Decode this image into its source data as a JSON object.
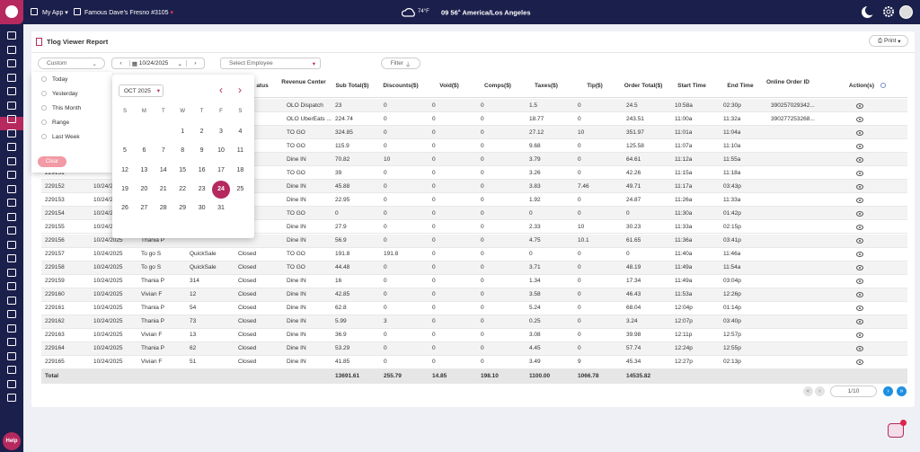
{
  "topbar": {
    "app": "My App",
    "store": "Famous Dave's Fresno #3105",
    "temperature": "74°F",
    "time": "09 56",
    "ampm": "A",
    "timezone": "America/Los Angeles"
  },
  "page": {
    "title": "Tlog Viewer Report",
    "print": "Print"
  },
  "filters": {
    "range": "Custom",
    "date": "10/24/2025",
    "employee": "Select Employee",
    "filter": "Filter"
  },
  "range_menu": {
    "options": [
      "Today",
      "Yesterday",
      "This Month",
      "Range",
      "Last Week"
    ],
    "clear": "Clear"
  },
  "calendar": {
    "month": "OCT 2025",
    "weekdays": [
      "S",
      "M",
      "T",
      "W",
      "T",
      "F",
      "S"
    ],
    "days": [
      null,
      null,
      null,
      "1",
      "2",
      "3",
      "4",
      "5",
      "6",
      "7",
      "8",
      "9",
      "10",
      "11",
      "12",
      "13",
      "14",
      "15",
      "16",
      "17",
      "18",
      "19",
      "20",
      "21",
      "22",
      "23",
      "24",
      "25",
      "26",
      "27",
      "28",
      "29",
      "30",
      "31"
    ]
  },
  "table": {
    "headers": [
      null,
      null,
      null,
      null,
      "atus",
      "Revenue Center",
      "Sub Total($)",
      "Discounts($)",
      "Void($)",
      "Comps($)",
      "Taxes($)",
      "Tip($)",
      "Order Total($)",
      "Start Time",
      "End Time",
      "Online Order ID",
      "Action(s)"
    ],
    "rows": [
      [
        null,
        null,
        null,
        null,
        null,
        "OLO Dispatch",
        "23",
        "0",
        "0",
        "0",
        "1.5",
        "0",
        "24.5",
        "10:58a",
        "02:30p",
        "390257029342..."
      ],
      [
        null,
        null,
        null,
        null,
        null,
        "OLO UberEats ...",
        "224.74",
        "0",
        "0",
        "0",
        "18.77",
        "0",
        "243.51",
        "11:00a",
        "11:32a",
        "390277253268..."
      ],
      [
        null,
        null,
        null,
        null,
        null,
        "TO GO",
        "324.85",
        "0",
        "0",
        "0",
        "27.12",
        "10",
        "351.97",
        "11:01a",
        "11:04a",
        null
      ],
      [
        null,
        null,
        null,
        null,
        null,
        "TO GO",
        "115.9",
        "0",
        "0",
        "0",
        "9.68",
        "0",
        "125.58",
        "11:07a",
        "11:10a",
        null
      ],
      [
        null,
        null,
        null,
        null,
        null,
        "Dine IN",
        "70.82",
        "10",
        "0",
        "0",
        "3.79",
        "0",
        "64.61",
        "11:12a",
        "11:55a",
        null
      ],
      [
        "229151",
        null,
        null,
        null,
        null,
        "TO GO",
        "39",
        "0",
        "0",
        "0",
        "3.26",
        "0",
        "42.26",
        "11:15a",
        "11:18a",
        null
      ],
      [
        "229152",
        "10/24/2025",
        null,
        null,
        null,
        "Dine IN",
        "45.88",
        "0",
        "0",
        "0",
        "3.83",
        "7.46",
        "49.71",
        "11:17a",
        "03:43p",
        null
      ],
      [
        "229153",
        "10/24/2025",
        null,
        null,
        null,
        "Dine IN",
        "22.95",
        "0",
        "0",
        "0",
        "1.92",
        "0",
        "24.87",
        "11:26a",
        "11:33a",
        null
      ],
      [
        "229154",
        "10/24/2025",
        null,
        null,
        null,
        "TO GO",
        "0",
        "0",
        "0",
        "0",
        "0",
        "0",
        "0",
        "11:30a",
        "01:42p",
        null
      ],
      [
        "229155",
        "10/24/2025",
        null,
        null,
        null,
        "Dine IN",
        "27.9",
        "0",
        "0",
        "0",
        "2.33",
        "10",
        "30.23",
        "11:33a",
        "02:15p",
        null
      ],
      [
        "229156",
        "10/24/2025",
        "Thania P",
        null,
        null,
        "Dine IN",
        "56.9",
        "0",
        "0",
        "0",
        "4.75",
        "10.1",
        "61.65",
        "11:36a",
        "03:41p",
        null
      ],
      [
        "229157",
        "10/24/2025",
        "To go S",
        "QuickSale",
        "Closed",
        "TO GO",
        "191.8",
        "191.8",
        "0",
        "0",
        "0",
        "0",
        "0",
        "11:40a",
        "11:46a",
        null
      ],
      [
        "229158",
        "10/24/2025",
        "To go S",
        "QuickSale",
        "Closed",
        "TO GO",
        "44.48",
        "0",
        "0",
        "0",
        "3.71",
        "0",
        "48.19",
        "11:49a",
        "11:54a",
        null
      ],
      [
        "229159",
        "10/24/2025",
        "Thania P",
        "314",
        "Closed",
        "Dine IN",
        "16",
        "0",
        "0",
        "0",
        "1.34",
        "0",
        "17.34",
        "11:49a",
        "03:04p",
        null
      ],
      [
        "229160",
        "10/24/2025",
        "Vivian F",
        "12",
        "Closed",
        "Dine IN",
        "42.85",
        "0",
        "0",
        "0",
        "3.58",
        "0",
        "46.43",
        "11:53a",
        "12:26p",
        null
      ],
      [
        "229161",
        "10/24/2025",
        "Thania P",
        "54",
        "Closed",
        "Dine IN",
        "62.8",
        "0",
        "0",
        "0",
        "5.24",
        "0",
        "68.04",
        "12:04p",
        "01:14p",
        null
      ],
      [
        "229162",
        "10/24/2025",
        "Thania P",
        "73",
        "Closed",
        "Dine IN",
        "5.99",
        "3",
        "0",
        "0",
        "0.25",
        "0",
        "3.24",
        "12:07p",
        "03:40p",
        null
      ],
      [
        "229163",
        "10/24/2025",
        "Vivian F",
        "13",
        "Closed",
        "Dine IN",
        "36.9",
        "0",
        "0",
        "0",
        "3.08",
        "0",
        "39.98",
        "12:11p",
        "12:57p",
        null
      ],
      [
        "229164",
        "10/24/2025",
        "Thania P",
        "62",
        "Closed",
        "Dine IN",
        "53.29",
        "0",
        "0",
        "0",
        "4.45",
        "0",
        "57.74",
        "12:24p",
        "12:55p",
        null
      ],
      [
        "229165",
        "10/24/2025",
        "Vivian F",
        "51",
        "Closed",
        "Dine IN",
        "41.85",
        "0",
        "0",
        "0",
        "3.49",
        "9",
        "45.34",
        "12:27p",
        "02:13p",
        null
      ]
    ],
    "total": [
      "Total",
      null,
      null,
      null,
      null,
      null,
      "13691.61",
      "255.79",
      "14.85",
      "198.10",
      "1100.00",
      "1066.78",
      "14535.82",
      null,
      null,
      null
    ]
  },
  "pagination": "1/10",
  "help": "Help"
}
